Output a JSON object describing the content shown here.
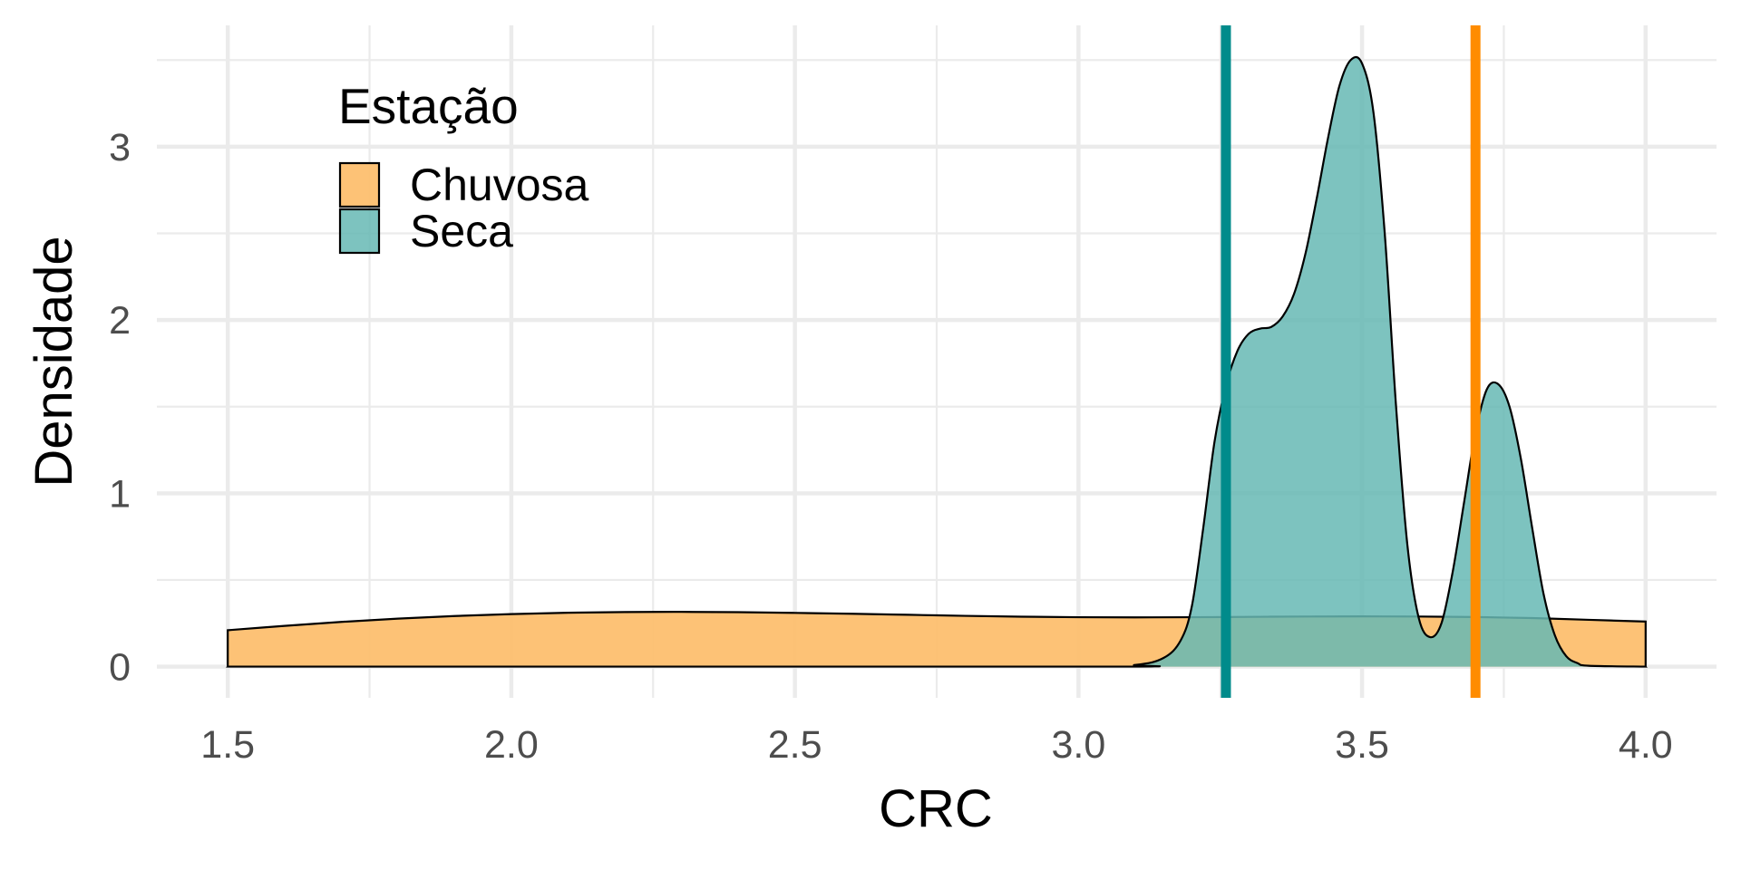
{
  "chart_data": {
    "type": "area",
    "xlabel": "CRC",
    "ylabel": "Densidade",
    "xlim": [
      1.375,
      4.125
    ],
    "ylim": [
      -0.18,
      3.7
    ],
    "x_ticks": [
      1.5,
      2.0,
      2.5,
      3.0,
      3.5,
      4.0
    ],
    "x_tick_labels": [
      "1.5",
      "2.0",
      "2.5",
      "3.0",
      "3.5",
      "4.0"
    ],
    "x_minor_ticks": [
      1.75,
      2.25,
      2.75,
      3.25,
      3.75
    ],
    "y_ticks": [
      0,
      1,
      2,
      3
    ],
    "y_tick_labels": [
      "0",
      "1",
      "2",
      "3"
    ],
    "y_minor_ticks": [
      0.5,
      1.5,
      2.5,
      3.5
    ],
    "grid": true,
    "legend": {
      "title": "Estação",
      "placement": "top-left"
    },
    "series": [
      {
        "name": "Chuvosa",
        "fill": "#fdbf6f",
        "fill_opacity": 0.95,
        "x": [
          1.5,
          1.6,
          1.7,
          1.8,
          1.9,
          2.0,
          2.1,
          2.2,
          2.3,
          2.4,
          2.5,
          2.6,
          2.7,
          2.8,
          2.9,
          3.0,
          3.1,
          3.2,
          3.3,
          3.4,
          3.5,
          3.6,
          3.7,
          3.8,
          3.9,
          4.0
        ],
        "y": [
          0.21,
          0.235,
          0.258,
          0.277,
          0.292,
          0.303,
          0.311,
          0.315,
          0.316,
          0.314,
          0.31,
          0.305,
          0.299,
          0.293,
          0.288,
          0.285,
          0.284,
          0.285,
          0.287,
          0.289,
          0.29,
          0.289,
          0.286,
          0.28,
          0.27,
          0.26
        ]
      },
      {
        "name": "Seca",
        "fill": "#66b8b4",
        "fill_opacity": 0.85,
        "x": [
          1.5,
          3.0,
          3.1,
          3.15,
          3.18,
          3.2,
          3.22,
          3.24,
          3.26,
          3.28,
          3.3,
          3.32,
          3.34,
          3.36,
          3.38,
          3.4,
          3.42,
          3.44,
          3.46,
          3.48,
          3.5,
          3.52,
          3.54,
          3.56,
          3.58,
          3.6,
          3.62,
          3.64,
          3.66,
          3.68,
          3.7,
          3.72,
          3.74,
          3.76,
          3.78,
          3.8,
          3.82,
          3.84,
          3.86,
          3.88,
          3.9,
          4.0
        ],
        "y": [
          0.0,
          0.0,
          0.01,
          0.05,
          0.15,
          0.35,
          0.8,
          1.3,
          1.62,
          1.82,
          1.92,
          1.95,
          1.96,
          2.02,
          2.15,
          2.38,
          2.7,
          3.05,
          3.35,
          3.5,
          3.48,
          3.2,
          2.5,
          1.5,
          0.7,
          0.28,
          0.17,
          0.25,
          0.55,
          0.95,
          1.35,
          1.6,
          1.63,
          1.5,
          1.2,
          0.8,
          0.42,
          0.18,
          0.06,
          0.02,
          0.005,
          0.0
        ]
      }
    ],
    "overlap_fill": "#7da783",
    "vlines": [
      {
        "series": "Seca",
        "x": 3.26,
        "color": "#008b8b"
      },
      {
        "series": "Chuvosa",
        "x": 3.7,
        "color": "#ff8c00"
      }
    ]
  }
}
